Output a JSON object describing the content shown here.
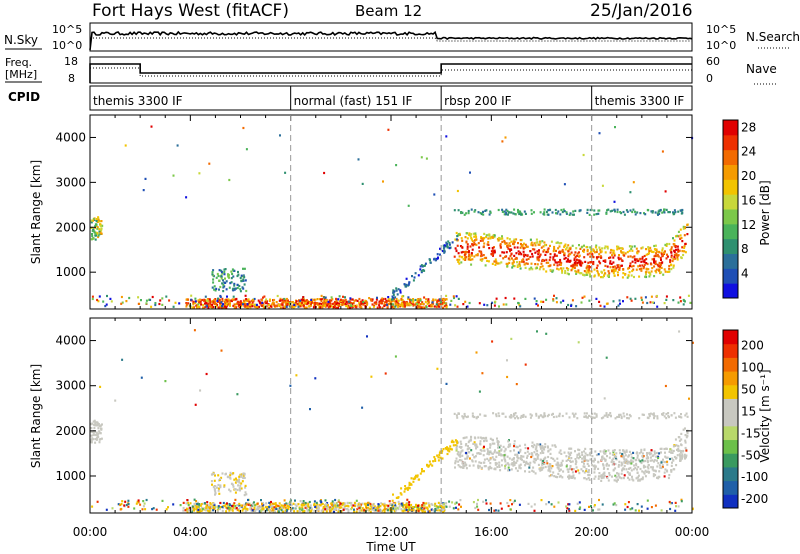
{
  "header": {
    "title": "Fort Hays West (fitACF)",
    "beam": "Beam 12",
    "date": "25/Jan/2016"
  },
  "noise_panel": {
    "left_label": "N.Sky",
    "right_label": "N.Search",
    "left_ticks": [
      "10^5",
      "10^0"
    ],
    "right_ticks": [
      "10^5",
      "10^0"
    ]
  },
  "freq_panel": {
    "left_label_1": "Freq.",
    "left_label_2": "[MHz]",
    "right_label": "Nave",
    "left_ticks": [
      "18",
      "8"
    ],
    "right_ticks": [
      "60",
      "0"
    ]
  },
  "cpid_panel": {
    "label": "CPID",
    "segments": [
      {
        "name": "themis 3300 IF",
        "start": 0,
        "end": 8
      },
      {
        "name": "normal (fast) 151 IF",
        "start": 8,
        "end": 14
      },
      {
        "name": "rbsp 200 IF",
        "start": 14,
        "end": 20
      },
      {
        "name": "themis 3300 IF",
        "start": 20,
        "end": 24
      }
    ]
  },
  "chart_data": [
    {
      "type": "heatmap",
      "name": "power",
      "ylabel": "Slant Range [km]",
      "ylim": [
        180,
        4500
      ],
      "yticks": [
        1000,
        2000,
        3000,
        4000
      ],
      "xlim": [
        0,
        24
      ],
      "colorbar": {
        "label": "Power [dB]",
        "ticks": [
          "4",
          "8",
          "12",
          "16",
          "20",
          "24",
          "28"
        ],
        "colors": [
          "#1010e0",
          "#1f4fb5",
          "#2b6f9a",
          "#2f9070",
          "#4ab35a",
          "#7cc84a",
          "#c8d83a",
          "#f2c400",
          "#f59b00",
          "#f26a00",
          "#ee3000",
          "#e00000"
        ]
      }
    },
    {
      "type": "heatmap",
      "name": "velocity",
      "ylabel": "Slant Range [km]",
      "ylim": [
        180,
        4500
      ],
      "yticks": [
        1000,
        2000,
        3000,
        4000
      ],
      "xlim": [
        0,
        24
      ],
      "xlabel": "Time UT",
      "xticks": [
        "00:00",
        "04:00",
        "08:00",
        "12:00",
        "16:00",
        "20:00",
        "00:00"
      ],
      "colorbar": {
        "label": "Velocity [m s⁻¹]",
        "ticks": [
          "200",
          "100",
          "50",
          "15",
          "-15",
          "-50",
          "-100",
          "-200"
        ],
        "colors": [
          "#1030c0",
          "#1f5fa8",
          "#2b7a8a",
          "#3a9a60",
          "#6cc04a",
          "#b8d86a",
          "#c8c8c0",
          "#c8c8c0",
          "#f2c400",
          "#f59b00",
          "#f26a00",
          "#ee3000",
          "#e00000"
        ]
      }
    }
  ],
  "dividers": [
    8,
    14,
    20
  ]
}
